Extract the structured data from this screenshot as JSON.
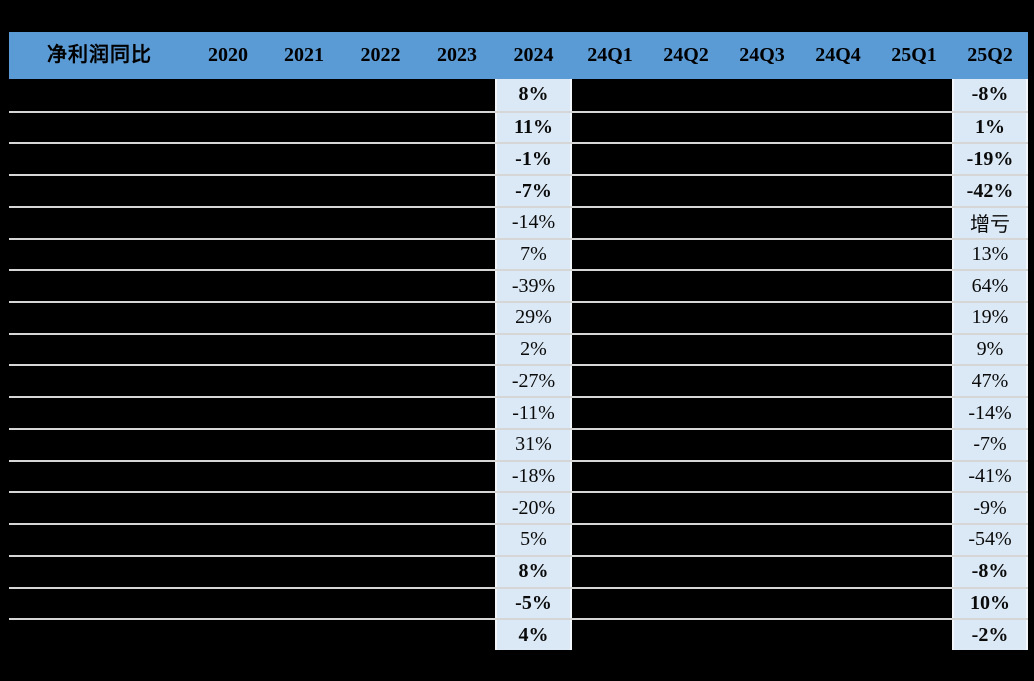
{
  "chart_data": {
    "type": "table",
    "title": "净利润同比",
    "columns": [
      "净利润同比",
      "2020",
      "2021",
      "2022",
      "2023",
      "2024",
      "24Q1",
      "24Q2",
      "24Q3",
      "24Q4",
      "25Q1",
      "25Q2"
    ],
    "redacted_columns": [
      "净利润同比(row labels)",
      "2020",
      "2021",
      "2022",
      "2023",
      "24Q1",
      "24Q2",
      "24Q3",
      "24Q4",
      "25Q1"
    ],
    "visible_series": [
      {
        "name": "2024",
        "values": [
          "8%",
          "11%",
          "-1%",
          "-7%",
          "-14%",
          "7%",
          "-39%",
          "29%",
          "2%",
          "-27%",
          "-11%",
          "31%",
          "-18%",
          "-20%",
          "5%",
          "8%",
          "-5%",
          "4%"
        ]
      },
      {
        "name": "25Q2",
        "values": [
          "-8%",
          "1%",
          "-19%",
          "-42%",
          "增亏",
          "13%",
          "64%",
          "19%",
          "9%",
          "47%",
          "-14%",
          "-7%",
          "-41%",
          "-9%",
          "-54%",
          "-8%",
          "10%",
          "-2%"
        ]
      }
    ],
    "bold_row_indices": [
      0,
      1,
      2,
      3,
      15,
      16,
      17
    ],
    "row_count": 18
  },
  "table": {
    "header": {
      "columns": [
        "净利润同比",
        "2020",
        "2021",
        "2022",
        "2023",
        "2024",
        "24Q1",
        "24Q2",
        "24Q3",
        "24Q4",
        "25Q1",
        "25Q2"
      ]
    },
    "highlighted_columns": [
      "2024",
      "25Q2"
    ],
    "rows": [
      {
        "2024": "8%",
        "25Q2": "-8%",
        "bold": true
      },
      {
        "2024": "11%",
        "25Q2": "1%",
        "bold": true
      },
      {
        "2024": "-1%",
        "25Q2": "-19%",
        "bold": true
      },
      {
        "2024": "-7%",
        "25Q2": "-42%",
        "bold": true
      },
      {
        "2024": "-14%",
        "25Q2": "增亏",
        "bold": false
      },
      {
        "2024": "7%",
        "25Q2": "13%",
        "bold": false
      },
      {
        "2024": "-39%",
        "25Q2": "64%",
        "bold": false
      },
      {
        "2024": "29%",
        "25Q2": "19%",
        "bold": false
      },
      {
        "2024": "2%",
        "25Q2": "9%",
        "bold": false
      },
      {
        "2024": "-27%",
        "25Q2": "47%",
        "bold": false
      },
      {
        "2024": "-11%",
        "25Q2": "-14%",
        "bold": false
      },
      {
        "2024": "31%",
        "25Q2": "-7%",
        "bold": false
      },
      {
        "2024": "-18%",
        "25Q2": "-41%",
        "bold": false
      },
      {
        "2024": "-20%",
        "25Q2": "-9%",
        "bold": false
      },
      {
        "2024": "5%",
        "25Q2": "-54%",
        "bold": false
      },
      {
        "2024": "8%",
        "25Q2": "-8%",
        "bold": true
      },
      {
        "2024": "-5%",
        "25Q2": "10%",
        "bold": true
      },
      {
        "2024": "4%",
        "25Q2": "-2%",
        "bold": true
      }
    ]
  },
  "colors": {
    "header_bg": "#5B9BD5",
    "header_text": "#000000",
    "highlight_bg": "#DBE9F6",
    "highlight_border": "#F3F7FC",
    "separator": "#D6D6D6",
    "background": "#000000",
    "value_text": "#0A0A0A"
  }
}
